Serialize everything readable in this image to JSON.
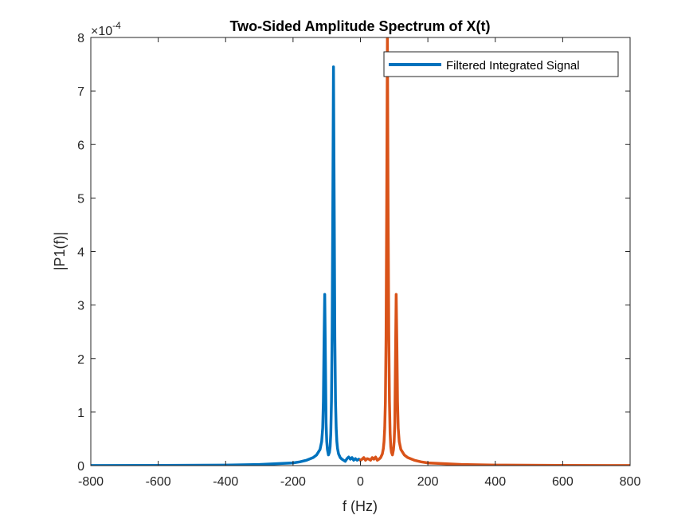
{
  "chart_data": {
    "type": "line",
    "title": "Two-Sided Amplitude Spectrum of X(t)",
    "xlabel": "f (Hz)",
    "ylabel": "|P1(f)|",
    "xlim": [
      -800,
      800
    ],
    "ylim": [
      0,
      8
    ],
    "y_multiplier": {
      "base": "×10",
      "exponent": "-4"
    },
    "xticks": [
      -800,
      -600,
      -400,
      -200,
      0,
      200,
      400,
      600,
      800
    ],
    "yticks": [
      0,
      1,
      2,
      3,
      4,
      5,
      6,
      7,
      8
    ],
    "grid": false,
    "legend": {
      "placement": "top-right",
      "entries": [
        "Filtered Integrated Signal"
      ]
    },
    "colors": {
      "negative_half": "#0072BD",
      "positive_half": "#D95319",
      "axes": "#262626"
    },
    "series": [
      {
        "name": "Filtered Integrated Signal",
        "color": "#0072BD",
        "x": [
          -800,
          -600,
          -400,
          -300,
          -250,
          -200,
          -180,
          -160,
          -140,
          -130,
          -120,
          -115,
          -112,
          -110,
          -108,
          -106,
          -104,
          -102,
          -100,
          -98,
          -95,
          -92,
          -90,
          -88,
          -86,
          -84,
          -82,
          -80,
          -78,
          -76,
          -74,
          -72,
          -70,
          -68,
          -65,
          -60,
          -55,
          -50,
          -45,
          -40,
          -35,
          -30,
          -25,
          -20,
          -15,
          -10,
          -5,
          0
        ],
        "y": [
          0.001,
          0.003,
          0.01,
          0.02,
          0.035,
          0.05,
          0.07,
          0.1,
          0.15,
          0.2,
          0.3,
          0.45,
          0.7,
          1.2,
          2.3,
          3.2,
          2.0,
          0.8,
          0.45,
          0.3,
          0.2,
          0.25,
          0.35,
          0.6,
          1.2,
          2.5,
          4.8,
          7.45,
          5.0,
          2.4,
          1.2,
          0.7,
          0.45,
          0.32,
          0.22,
          0.15,
          0.12,
          0.1,
          0.08,
          0.13,
          0.16,
          0.12,
          0.15,
          0.1,
          0.13,
          0.1,
          0.12,
          0.1
        ]
      },
      {
        "color": "#D95319",
        "x": [
          0,
          5,
          10,
          15,
          20,
          25,
          30,
          35,
          40,
          45,
          50,
          55,
          60,
          65,
          68,
          70,
          72,
          74,
          76,
          78,
          80,
          82,
          84,
          86,
          88,
          90,
          92,
          95,
          98,
          100,
          102,
          104,
          106,
          108,
          110,
          112,
          115,
          120,
          130,
          140,
          160,
          180,
          200,
          250,
          300,
          400,
          600,
          800
        ],
        "y": [
          0.1,
          0.12,
          0.15,
          0.1,
          0.13,
          0.12,
          0.1,
          0.15,
          0.12,
          0.16,
          0.1,
          0.12,
          0.15,
          0.22,
          0.32,
          0.45,
          0.7,
          1.2,
          2.4,
          5.0,
          8.0,
          4.8,
          2.5,
          1.2,
          0.6,
          0.35,
          0.25,
          0.2,
          0.3,
          0.45,
          0.8,
          2.0,
          3.2,
          2.3,
          1.2,
          0.7,
          0.45,
          0.3,
          0.2,
          0.15,
          0.1,
          0.07,
          0.05,
          0.035,
          0.02,
          0.01,
          0.003,
          0.001
        ]
      }
    ]
  }
}
